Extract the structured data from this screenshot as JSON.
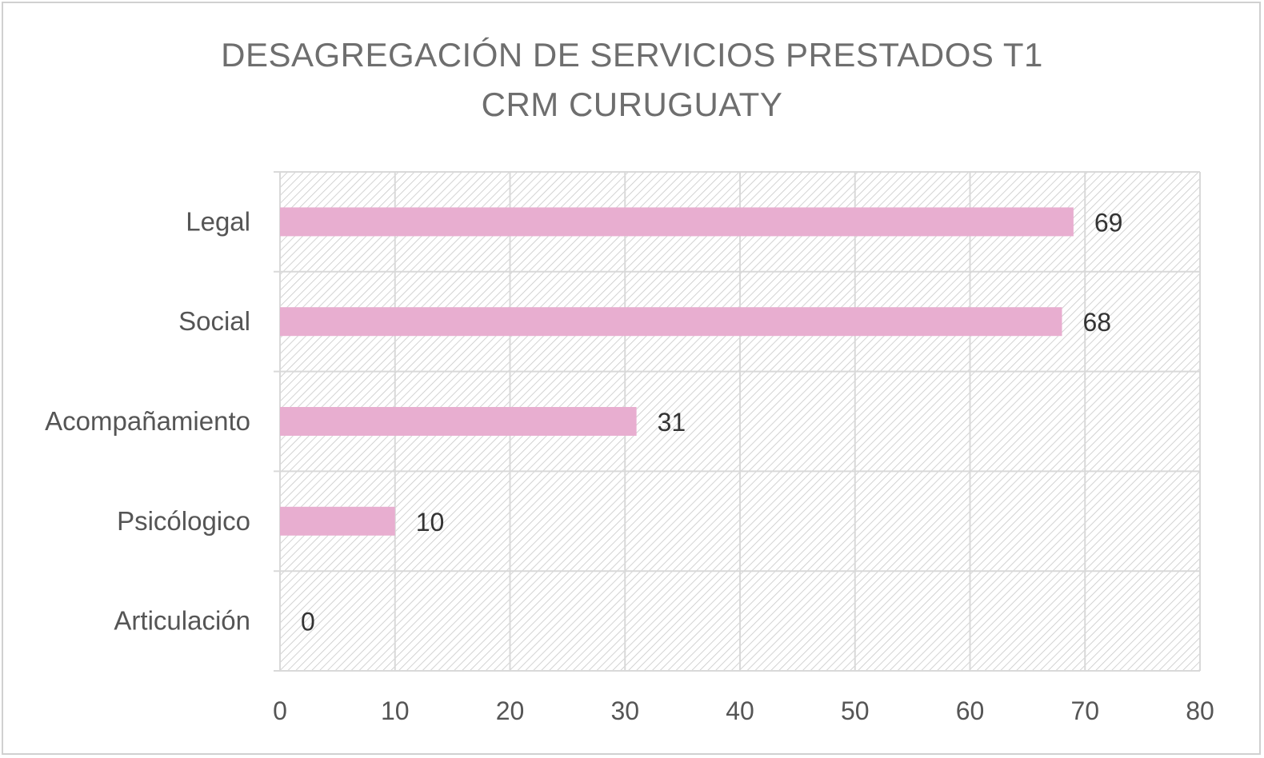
{
  "chart_data": {
    "type": "bar",
    "orientation": "horizontal",
    "title": [
      "DESAGREGACIÓN DE SERVICIOS PRESTADOS T1",
      "CRM CURUGUATY"
    ],
    "categories": [
      "Legal",
      "Social",
      "Acompañamiento",
      "Psicólogico",
      "Articulación"
    ],
    "values": [
      69,
      68,
      31,
      10,
      0
    ],
    "xlim": [
      0,
      80
    ],
    "x_ticks": [
      "0",
      "10",
      "20",
      "30",
      "40",
      "50",
      "60",
      "70",
      "80"
    ],
    "data_labels": [
      "69",
      "68",
      "31",
      "10",
      "0"
    ],
    "grid": true,
    "bar_color": "#e8aed0",
    "background_pattern": "diagonal-hatch"
  }
}
